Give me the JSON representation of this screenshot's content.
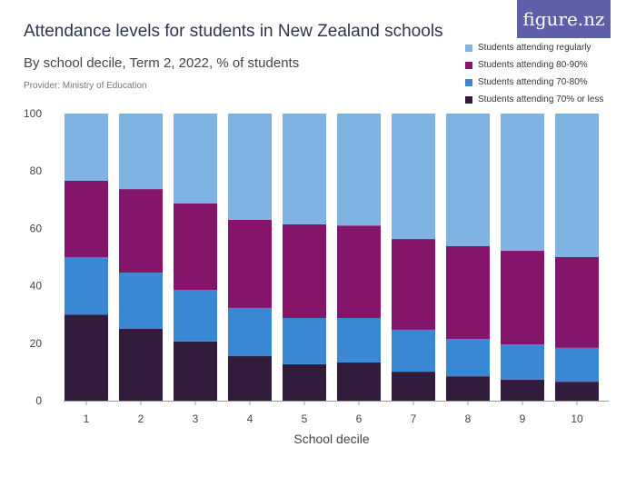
{
  "header": {
    "title": "Attendance levels for students in New Zealand schools",
    "subtitle": "By school decile, Term 2, 2022, % of students",
    "provider": "Provider: Ministry of Education",
    "logo": "figure.nz"
  },
  "chart_data": {
    "type": "bar",
    "stacked": true,
    "xlabel": "School decile",
    "ylabel": "",
    "categories": [
      "1",
      "2",
      "3",
      "4",
      "5",
      "6",
      "7",
      "8",
      "9",
      "10"
    ],
    "ylim": [
      0,
      100
    ],
    "yticks": [
      0,
      20,
      40,
      60,
      80,
      100
    ],
    "legend_position": "top-right",
    "series": [
      {
        "name": "Students attending 70% or less",
        "color": "#321c3c",
        "values": [
          30,
          25,
          20.6,
          15.5,
          12.7,
          13.3,
          10.1,
          8.5,
          7.3,
          6.6
        ]
      },
      {
        "name": "Students attending 70-80%",
        "color": "#3a88d3",
        "values": [
          20,
          19.6,
          18,
          16.8,
          16.1,
          15.5,
          14.6,
          13,
          12.3,
          11.8
        ]
      },
      {
        "name": "Students attending 80-90%",
        "color": "#84156b",
        "values": [
          26.6,
          29.1,
          30.1,
          30.7,
          32.6,
          32.2,
          31.6,
          32.3,
          32.6,
          31.6
        ]
      },
      {
        "name": "Students attending regularly",
        "color": "#7fb3e3",
        "values": [
          23.4,
          26.3,
          31.3,
          37,
          38.6,
          39,
          43.7,
          46.2,
          47.8,
          50
        ]
      }
    ]
  }
}
